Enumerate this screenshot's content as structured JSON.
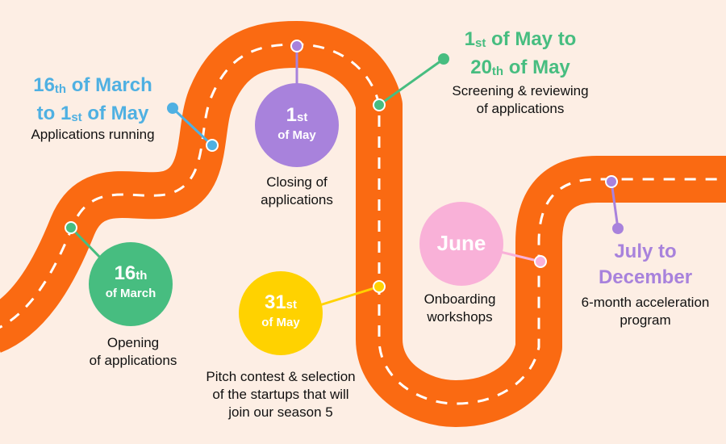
{
  "colors": {
    "background": "#fdeee4",
    "road": "#fa6a12",
    "dash": "#ffffff",
    "blue": "#4fb0e2",
    "green": "#47bd80",
    "purple": "#a882dc",
    "yellow": "#ffd200",
    "pink": "#f9b1d8"
  },
  "milestones": {
    "march16": {
      "num": "16",
      "suffix": "th",
      "sub": "of March",
      "label": "Opening\nof applications"
    },
    "may1": {
      "num": "1",
      "suffix": "st",
      "sub": "of May",
      "label": "Closing of\napplications"
    },
    "may31": {
      "num": "31",
      "suffix": "st",
      "sub": "of May",
      "label": "Pitch contest & selection\nof the startups that will\njoin our season 5"
    },
    "june": {
      "name": "June",
      "label": "Onboarding\nworkshops"
    }
  },
  "periods": {
    "running": {
      "line1_num": "16",
      "line1_suffix": "th",
      "line1_text": " of March",
      "line2_pre": "to ",
      "line2_num": "1",
      "line2_suffix": "st",
      "line2_text": " of May",
      "label": "Applications running"
    },
    "screening": {
      "line1_num": "1",
      "line1_suffix": "st",
      "line1_text": " of May to",
      "line2_num": "20",
      "line2_suffix": "th",
      "line2_text": " of May",
      "label": "Screening & reviewing\nof applications"
    },
    "acceleration": {
      "line1": "July to",
      "line2": "December",
      "label": "6-month acceleration\nprogram"
    }
  }
}
